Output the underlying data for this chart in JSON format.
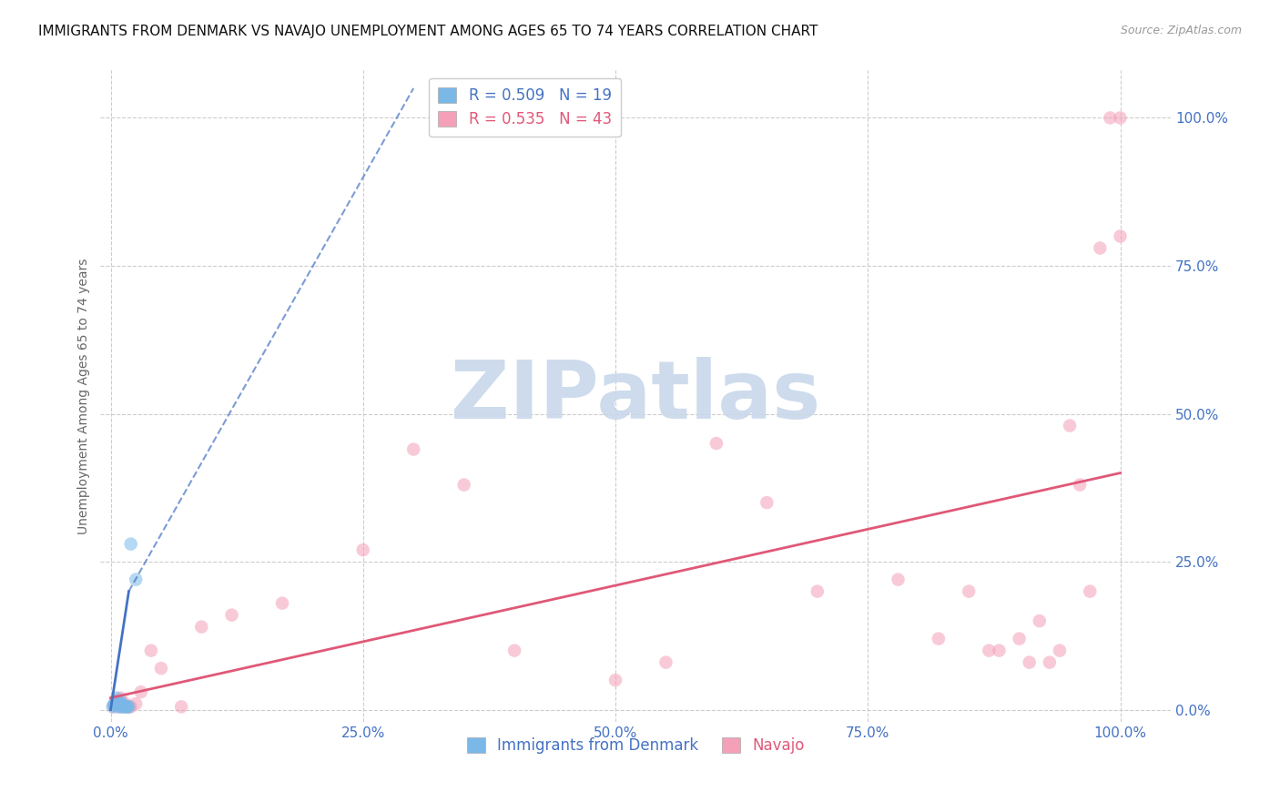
{
  "title": "IMMIGRANTS FROM DENMARK VS NAVAJO UNEMPLOYMENT AMONG AGES 65 TO 74 YEARS CORRELATION CHART",
  "source": "Source: ZipAtlas.com",
  "ylabel_label": "Unemployment Among Ages 65 to 74 years",
  "x_tick_labels": [
    "0.0%",
    "25.0%",
    "50.0%",
    "75.0%",
    "100.0%"
  ],
  "x_tick_positions": [
    0,
    0.25,
    0.5,
    0.75,
    1.0
  ],
  "y_tick_labels": [
    "0.0%",
    "25.0%",
    "50.0%",
    "75.0%",
    "100.0%"
  ],
  "y_tick_positions": [
    0,
    0.25,
    0.5,
    0.75,
    1.0
  ],
  "xlim": [
    -0.01,
    1.05
  ],
  "ylim": [
    -0.02,
    1.08
  ],
  "legend_entries": [
    {
      "label": "R = 0.509   N = 19"
    },
    {
      "label": "R = 0.535   N = 43"
    }
  ],
  "blue_scatter_x": [
    0.002,
    0.003,
    0.004,
    0.005,
    0.006,
    0.007,
    0.008,
    0.009,
    0.01,
    0.011,
    0.012,
    0.013,
    0.014,
    0.015,
    0.016,
    0.017,
    0.018,
    0.02,
    0.025
  ],
  "blue_scatter_y": [
    0.005,
    0.008,
    0.01,
    0.015,
    0.02,
    0.005,
    0.01,
    0.015,
    0.005,
    0.01,
    0.005,
    0.008,
    0.005,
    0.005,
    0.005,
    0.005,
    0.005,
    0.28,
    0.22
  ],
  "pink_scatter_x": [
    0.003,
    0.005,
    0.007,
    0.009,
    0.01,
    0.012,
    0.015,
    0.018,
    0.02,
    0.025,
    0.03,
    0.04,
    0.05,
    0.07,
    0.09,
    0.12,
    0.17,
    0.25,
    0.3,
    0.35,
    0.4,
    0.5,
    0.55,
    0.6,
    0.65,
    0.7,
    0.78,
    0.82,
    0.85,
    0.87,
    0.88,
    0.9,
    0.91,
    0.92,
    0.93,
    0.94,
    0.95,
    0.96,
    0.97,
    0.98,
    0.99,
    1.0,
    1.0
  ],
  "pink_scatter_y": [
    0.005,
    0.01,
    0.015,
    0.005,
    0.02,
    0.005,
    0.01,
    0.005,
    0.005,
    0.01,
    0.03,
    0.1,
    0.07,
    0.005,
    0.14,
    0.16,
    0.18,
    0.27,
    0.44,
    0.38,
    0.1,
    0.05,
    0.08,
    0.45,
    0.35,
    0.2,
    0.22,
    0.12,
    0.2,
    0.1,
    0.1,
    0.12,
    0.08,
    0.15,
    0.08,
    0.1,
    0.48,
    0.38,
    0.2,
    0.78,
    1.0,
    1.0,
    0.8
  ],
  "blue_solid_line_x": [
    0.0,
    0.018
  ],
  "blue_solid_line_y": [
    0.0,
    0.2
  ],
  "blue_dash_line_x": [
    0.018,
    0.3
  ],
  "blue_dash_line_y": [
    0.2,
    1.05
  ],
  "pink_line_x": [
    0.0,
    1.0
  ],
  "pink_line_y": [
    0.02,
    0.4
  ],
  "dot_color_blue": "#7ab8e8",
  "dot_color_pink": "#f4a0b8",
  "line_color_blue": "#4472c4",
  "line_color_pink": "#e05878",
  "grid_color": "#cccccc",
  "background_color": "#ffffff",
  "title_fontsize": 11,
  "axis_label_fontsize": 10,
  "tick_fontsize": 11,
  "legend_fontsize": 12,
  "dot_size": 110,
  "dot_alpha": 0.55,
  "watermark_text": "ZIPatlas",
  "watermark_color": "#c8d8ea"
}
